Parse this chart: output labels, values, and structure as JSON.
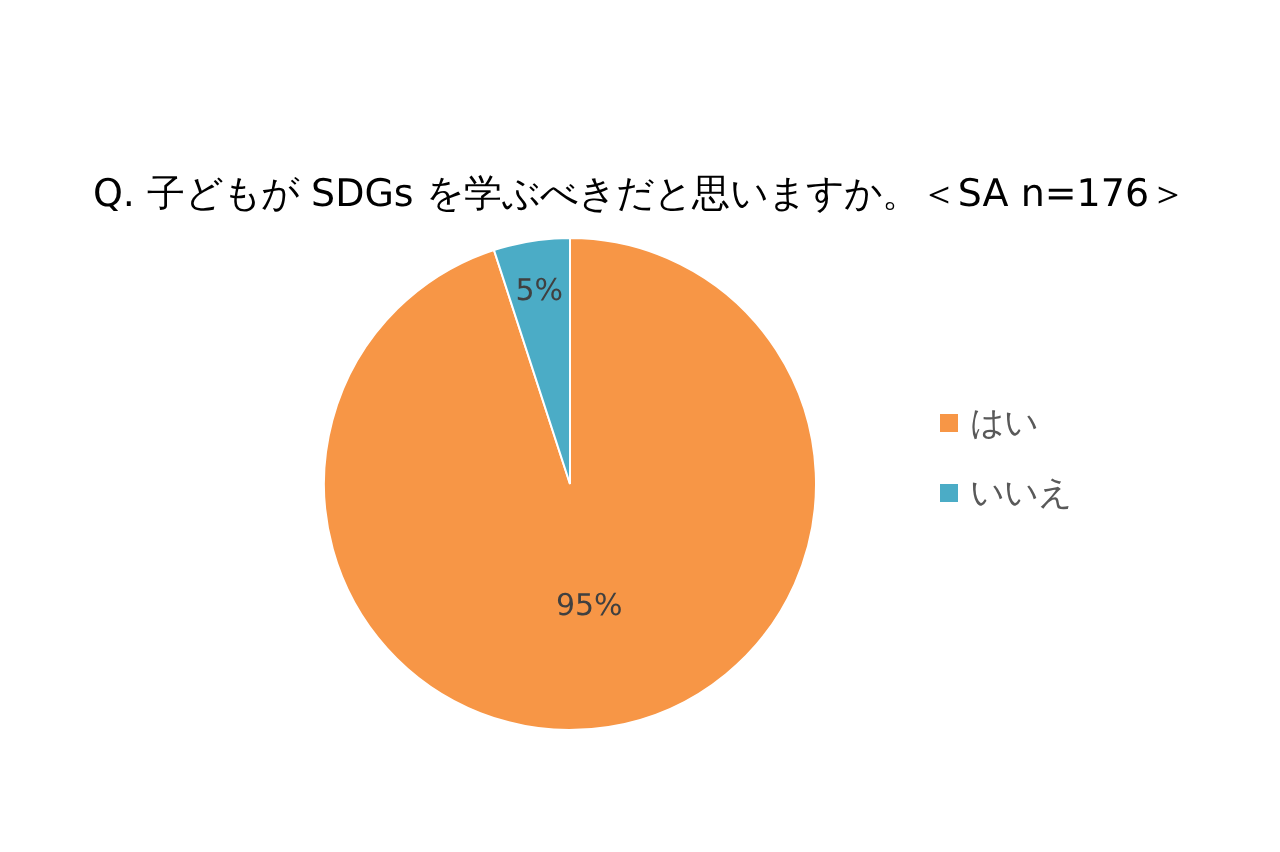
{
  "chart_data": {
    "type": "pie",
    "title": "Q. 子どもが SDGs を学ぶべきだと思いますか。＜SA n=176＞",
    "categories": [
      "はい",
      "いいえ"
    ],
    "values": [
      95,
      5
    ],
    "colors": [
      "#f79646",
      "#4bacc6"
    ],
    "value_labels": [
      "95%",
      "5%"
    ],
    "legend": "right"
  }
}
